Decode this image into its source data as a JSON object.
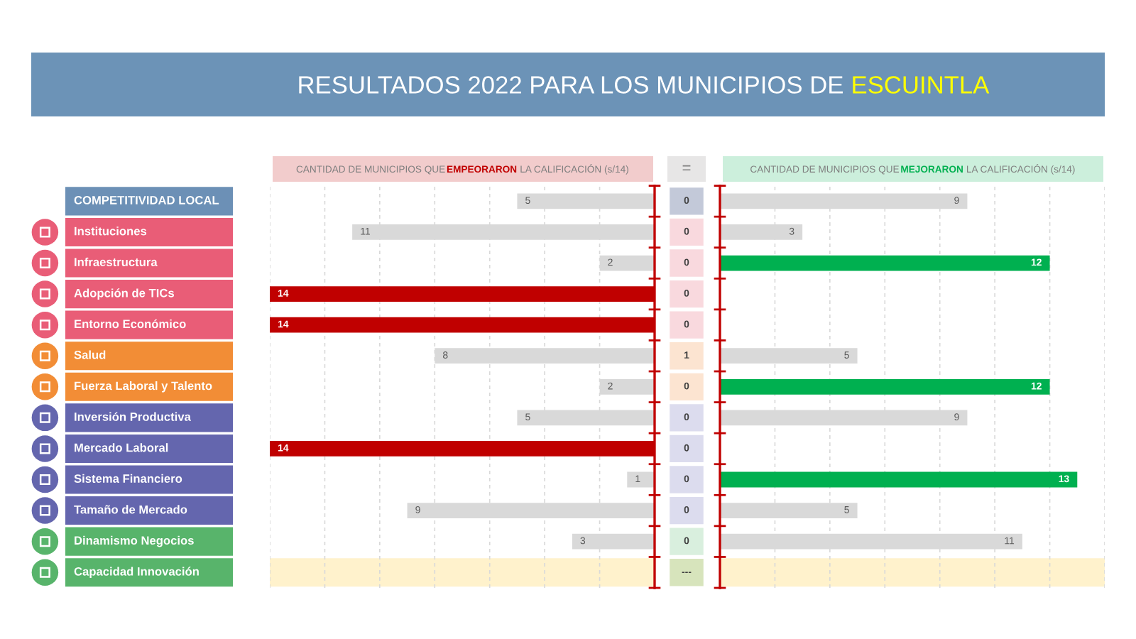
{
  "chart_data": [
    {
      "type": "other",
      "title": "RESULTADOS 2022 PARA LOS MUNICIPIOS DE ESCUINTLA"
    },
    {
      "type": "other",
      "categories": [
        "COMPETITIVIDAD LOCAL",
        "Instituciones",
        "Infraestructura",
        "Adopción de TICs",
        "Entorno Económico",
        "Salud",
        "Fuerza Laboral y Talento",
        "Inversión Productiva",
        "Mercado Laboral",
        "Sistema Financiero",
        "Tamaño de Mercado",
        "Dinamismo Negocios",
        "Capacidad Innovación"
      ],
      "colors": [
        "#6c90b6",
        "#e95d77",
        "#e95d77",
        "#e95d77",
        "#e95d77",
        "#f28d36",
        "#f28d36",
        "#6466ae",
        "#6466ae",
        "#6466ae",
        "#6466ae",
        "#58b46b",
        "#58b46b"
      ]
    },
    {
      "type": "bar",
      "orientation": "horizontal",
      "title": "CANTIDAD DE MUNICIPIOS QUE EMPEORARON LA CALIFICACIÓN (s/14)",
      "categories": [
        "COMPETITIVIDAD LOCAL",
        "Instituciones",
        "Infraestructura",
        "Adopción de TICs",
        "Entorno Económico",
        "Salud",
        "Fuerza Laboral y Talento",
        "Inversión Productiva",
        "Mercado Laboral",
        "Sistema Financiero",
        "Tamaño de Mercado",
        "Dinamismo Negocios",
        "Capacidad Innovación"
      ],
      "values": [
        5,
        11,
        2,
        14,
        14,
        8,
        2,
        5,
        14,
        1,
        9,
        3,
        null
      ],
      "colors": [
        "#d9d9d9",
        "#d9d9d9",
        "#d9d9d9",
        "#c00000",
        "#c00000",
        "#d9d9d9",
        "#d9d9d9",
        "#d9d9d9",
        "#c00000",
        "#d9d9d9",
        "#d9d9d9",
        "#d9d9d9",
        "#d9d9d9"
      ],
      "data_labels": true,
      "xlim": [
        14,
        0
      ],
      "xticks": [
        {
          "value": 0,
          "label": null
        },
        {
          "value": 2,
          "label": null
        },
        {
          "value": 4,
          "label": null
        },
        {
          "value": 6,
          "label": null
        },
        {
          "value": 8,
          "label": null
        },
        {
          "value": 10,
          "label": null
        },
        {
          "value": 12,
          "label": null
        },
        {
          "value": 14,
          "label": null
        }
      ],
      "grid": "x",
      "tick_labels": false,
      "bands": [
        {
          "axis": "y",
          "from": "Capacidad Innovación",
          "to": "Capacidad Innovación",
          "color": "#fff2cc"
        }
      ]
    },
    {
      "type": "other",
      "title": "=",
      "values": [
        0,
        0,
        0,
        0,
        0,
        1,
        0,
        0,
        0,
        0,
        0,
        0,
        null
      ],
      "colors": [
        "#c3c9d9",
        "#f9d9de",
        "#f9d9de",
        "#f9d9de",
        "#f9d9de",
        "#fce4d1",
        "#fce4d1",
        "#dcdcee",
        "#dcdcee",
        "#dcdcee",
        "#dcdcee",
        "#d9efde",
        "#d7e4bc"
      ],
      "data_labels": true,
      "annotations": [
        "---"
      ]
    },
    {
      "type": "bar",
      "orientation": "horizontal",
      "title": "CANTIDAD DE MUNICIPIOS QUE MEJORARON LA CALIFICACIÓN (s/14)",
      "categories": [
        "COMPETITIVIDAD LOCAL",
        "Instituciones",
        "Infraestructura",
        "Adopción de TICs",
        "Entorno Económico",
        "Salud",
        "Fuerza Laboral y Talento",
        "Inversión Productiva",
        "Mercado Laboral",
        "Sistema Financiero",
        "Tamaño de Mercado",
        "Dinamismo Negocios",
        "Capacidad Innovación"
      ],
      "values": [
        9,
        3,
        12,
        null,
        null,
        5,
        12,
        9,
        null,
        13,
        5,
        11,
        null
      ],
      "colors": [
        "#d9d9d9",
        "#d9d9d9",
        "#00b050",
        "#d9d9d9",
        "#d9d9d9",
        "#d9d9d9",
        "#00b050",
        "#d9d9d9",
        "#d9d9d9",
        "#00b050",
        "#d9d9d9",
        "#d9d9d9",
        "#d9d9d9"
      ],
      "data_labels": true,
      "xlim": [
        0,
        14
      ],
      "xticks": [
        {
          "value": 0,
          "label": null
        },
        {
          "value": 2,
          "label": null
        },
        {
          "value": 4,
          "label": null
        },
        {
          "value": 6,
          "label": null
        },
        {
          "value": 8,
          "label": null
        },
        {
          "value": 10,
          "label": null
        },
        {
          "value": 12,
          "label": null
        },
        {
          "value": 14,
          "label": null
        }
      ],
      "grid": "x",
      "tick_labels": false,
      "bands": [
        {
          "axis": "y",
          "from": "Capacidad Innovación",
          "to": "Capacidad Innovación",
          "color": "#fff2cc"
        }
      ]
    }
  ]
}
